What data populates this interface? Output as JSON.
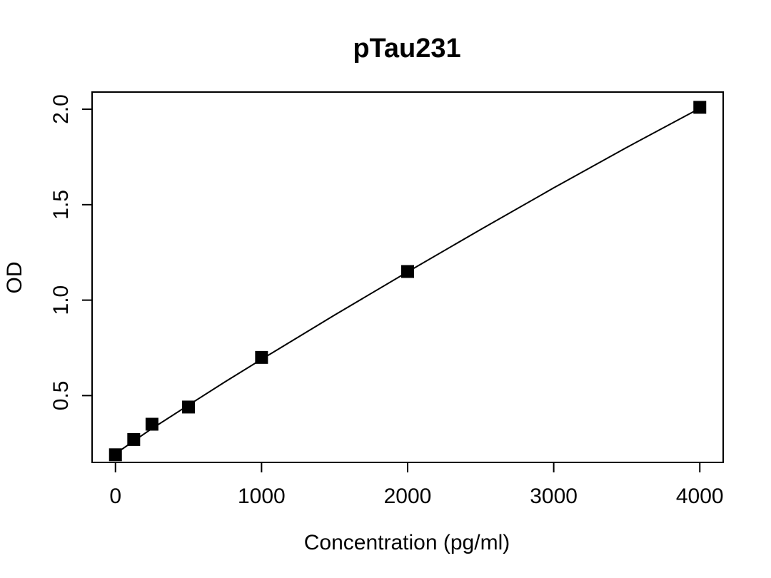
{
  "chart_data": {
    "type": "scatter",
    "title": "pTau231",
    "xlabel": "Concentration (pg/ml)",
    "ylabel": "OD",
    "xlim": [
      -160,
      4160
    ],
    "ylim": [
      0.15,
      2.09
    ],
    "xticks": [
      0,
      1000,
      2000,
      3000,
      4000
    ],
    "yticks": [
      0.5,
      1.0,
      1.5,
      2.0
    ],
    "xtick_labels": [
      "0",
      "1000",
      "2000",
      "3000",
      "4000"
    ],
    "ytick_labels": [
      "0.5",
      "1.0",
      "1.5",
      "2.0"
    ],
    "grid": false,
    "legend": "none",
    "marker": "filled-square",
    "marker_color": "#000000",
    "line_color": "#000000",
    "series": [
      {
        "x": [
          0,
          125,
          250,
          500,
          1000,
          2000,
          4000
        ],
        "y": [
          0.19,
          0.27,
          0.35,
          0.44,
          0.7,
          1.15,
          2.01
        ]
      }
    ],
    "fit_curve": {
      "x": [
        0,
        125,
        250,
        500,
        750,
        1000,
        1500,
        2000,
        2500,
        3000,
        3500,
        4000
      ],
      "y": [
        0.195,
        0.262,
        0.327,
        0.45,
        0.572,
        0.69,
        0.922,
        1.148,
        1.37,
        1.588,
        1.8,
        2.005
      ]
    }
  }
}
